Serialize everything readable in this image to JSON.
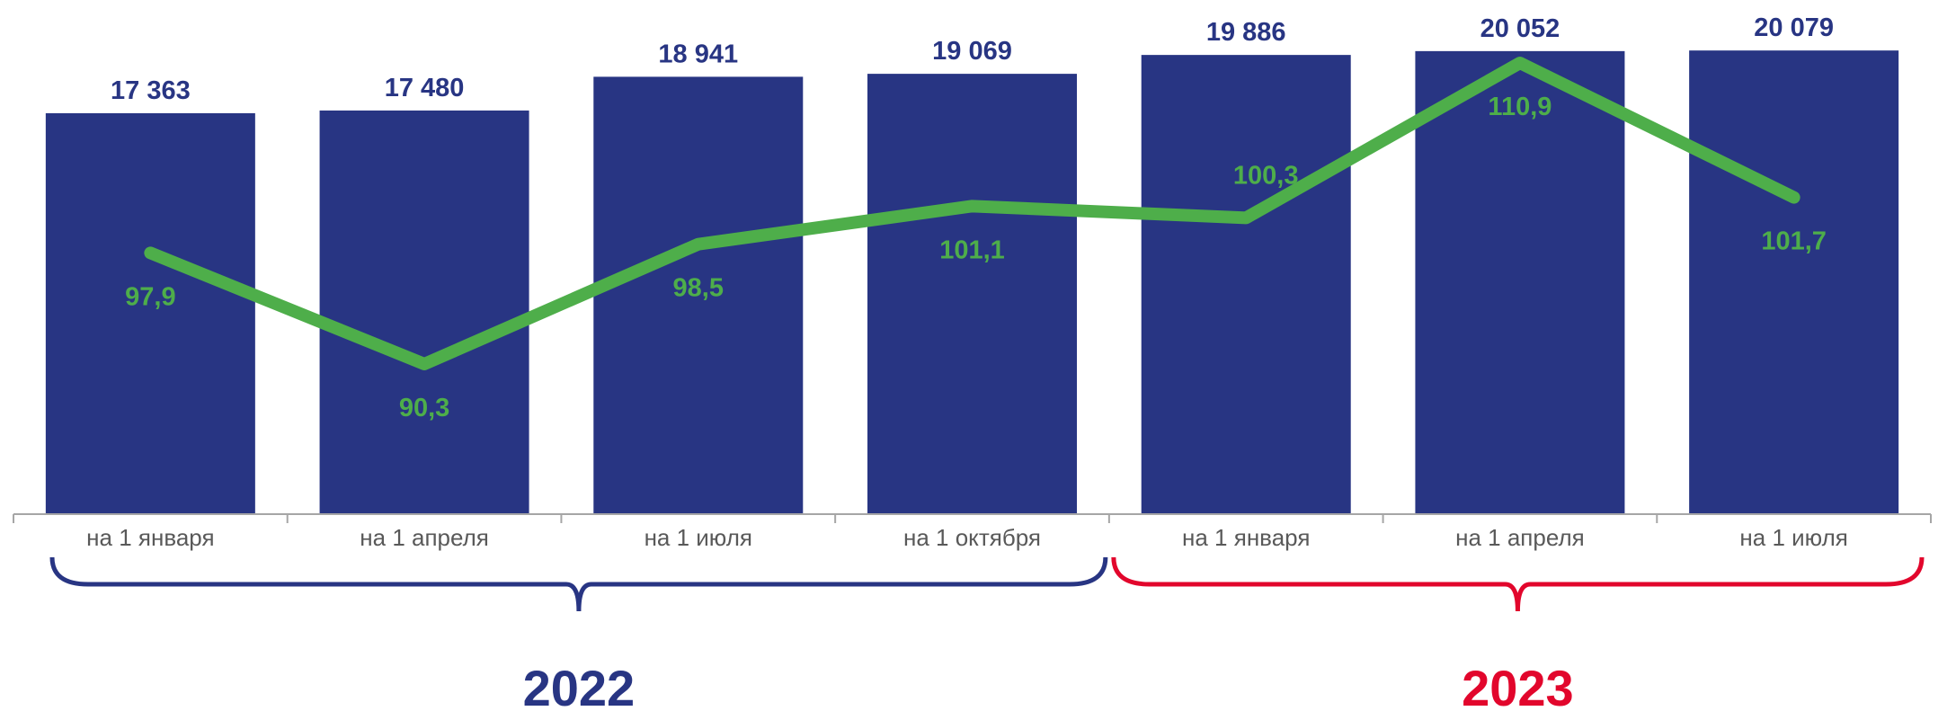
{
  "chart_data": {
    "type": "bar",
    "categories": [
      "на 1 января",
      "на 1 апреля",
      "на 1 июля",
      "на 1 октября",
      "на 1 января",
      "на 1 апреля",
      "на 1 июля"
    ],
    "series": [
      {
        "type": "bar",
        "values": [
          17363,
          17480,
          18941,
          19069,
          19886,
          20052,
          20079
        ],
        "labels": [
          "17 363",
          "17 480",
          "18 941",
          "19 069",
          "19 886",
          "20 052",
          "20 079"
        ],
        "color": "#283583"
      },
      {
        "type": "line",
        "values": [
          97.9,
          90.3,
          98.5,
          101.1,
          100.3,
          110.9,
          101.7
        ],
        "labels": [
          "97,9",
          "90,3",
          "98,5",
          "101,1",
          "100,3",
          "110,9",
          "101,7"
        ],
        "color": "#4EAE4A"
      }
    ],
    "groups": [
      {
        "label": "2022",
        "start": 0,
        "end": 3,
        "color": "#283583"
      },
      {
        "label": "2023",
        "start": 4,
        "end": 6,
        "color": "#E2062C"
      }
    ],
    "bar_ylim": [
      0,
      20600
    ],
    "line_ylim": [
      80,
      114
    ],
    "grid": false,
    "legend": "none"
  }
}
